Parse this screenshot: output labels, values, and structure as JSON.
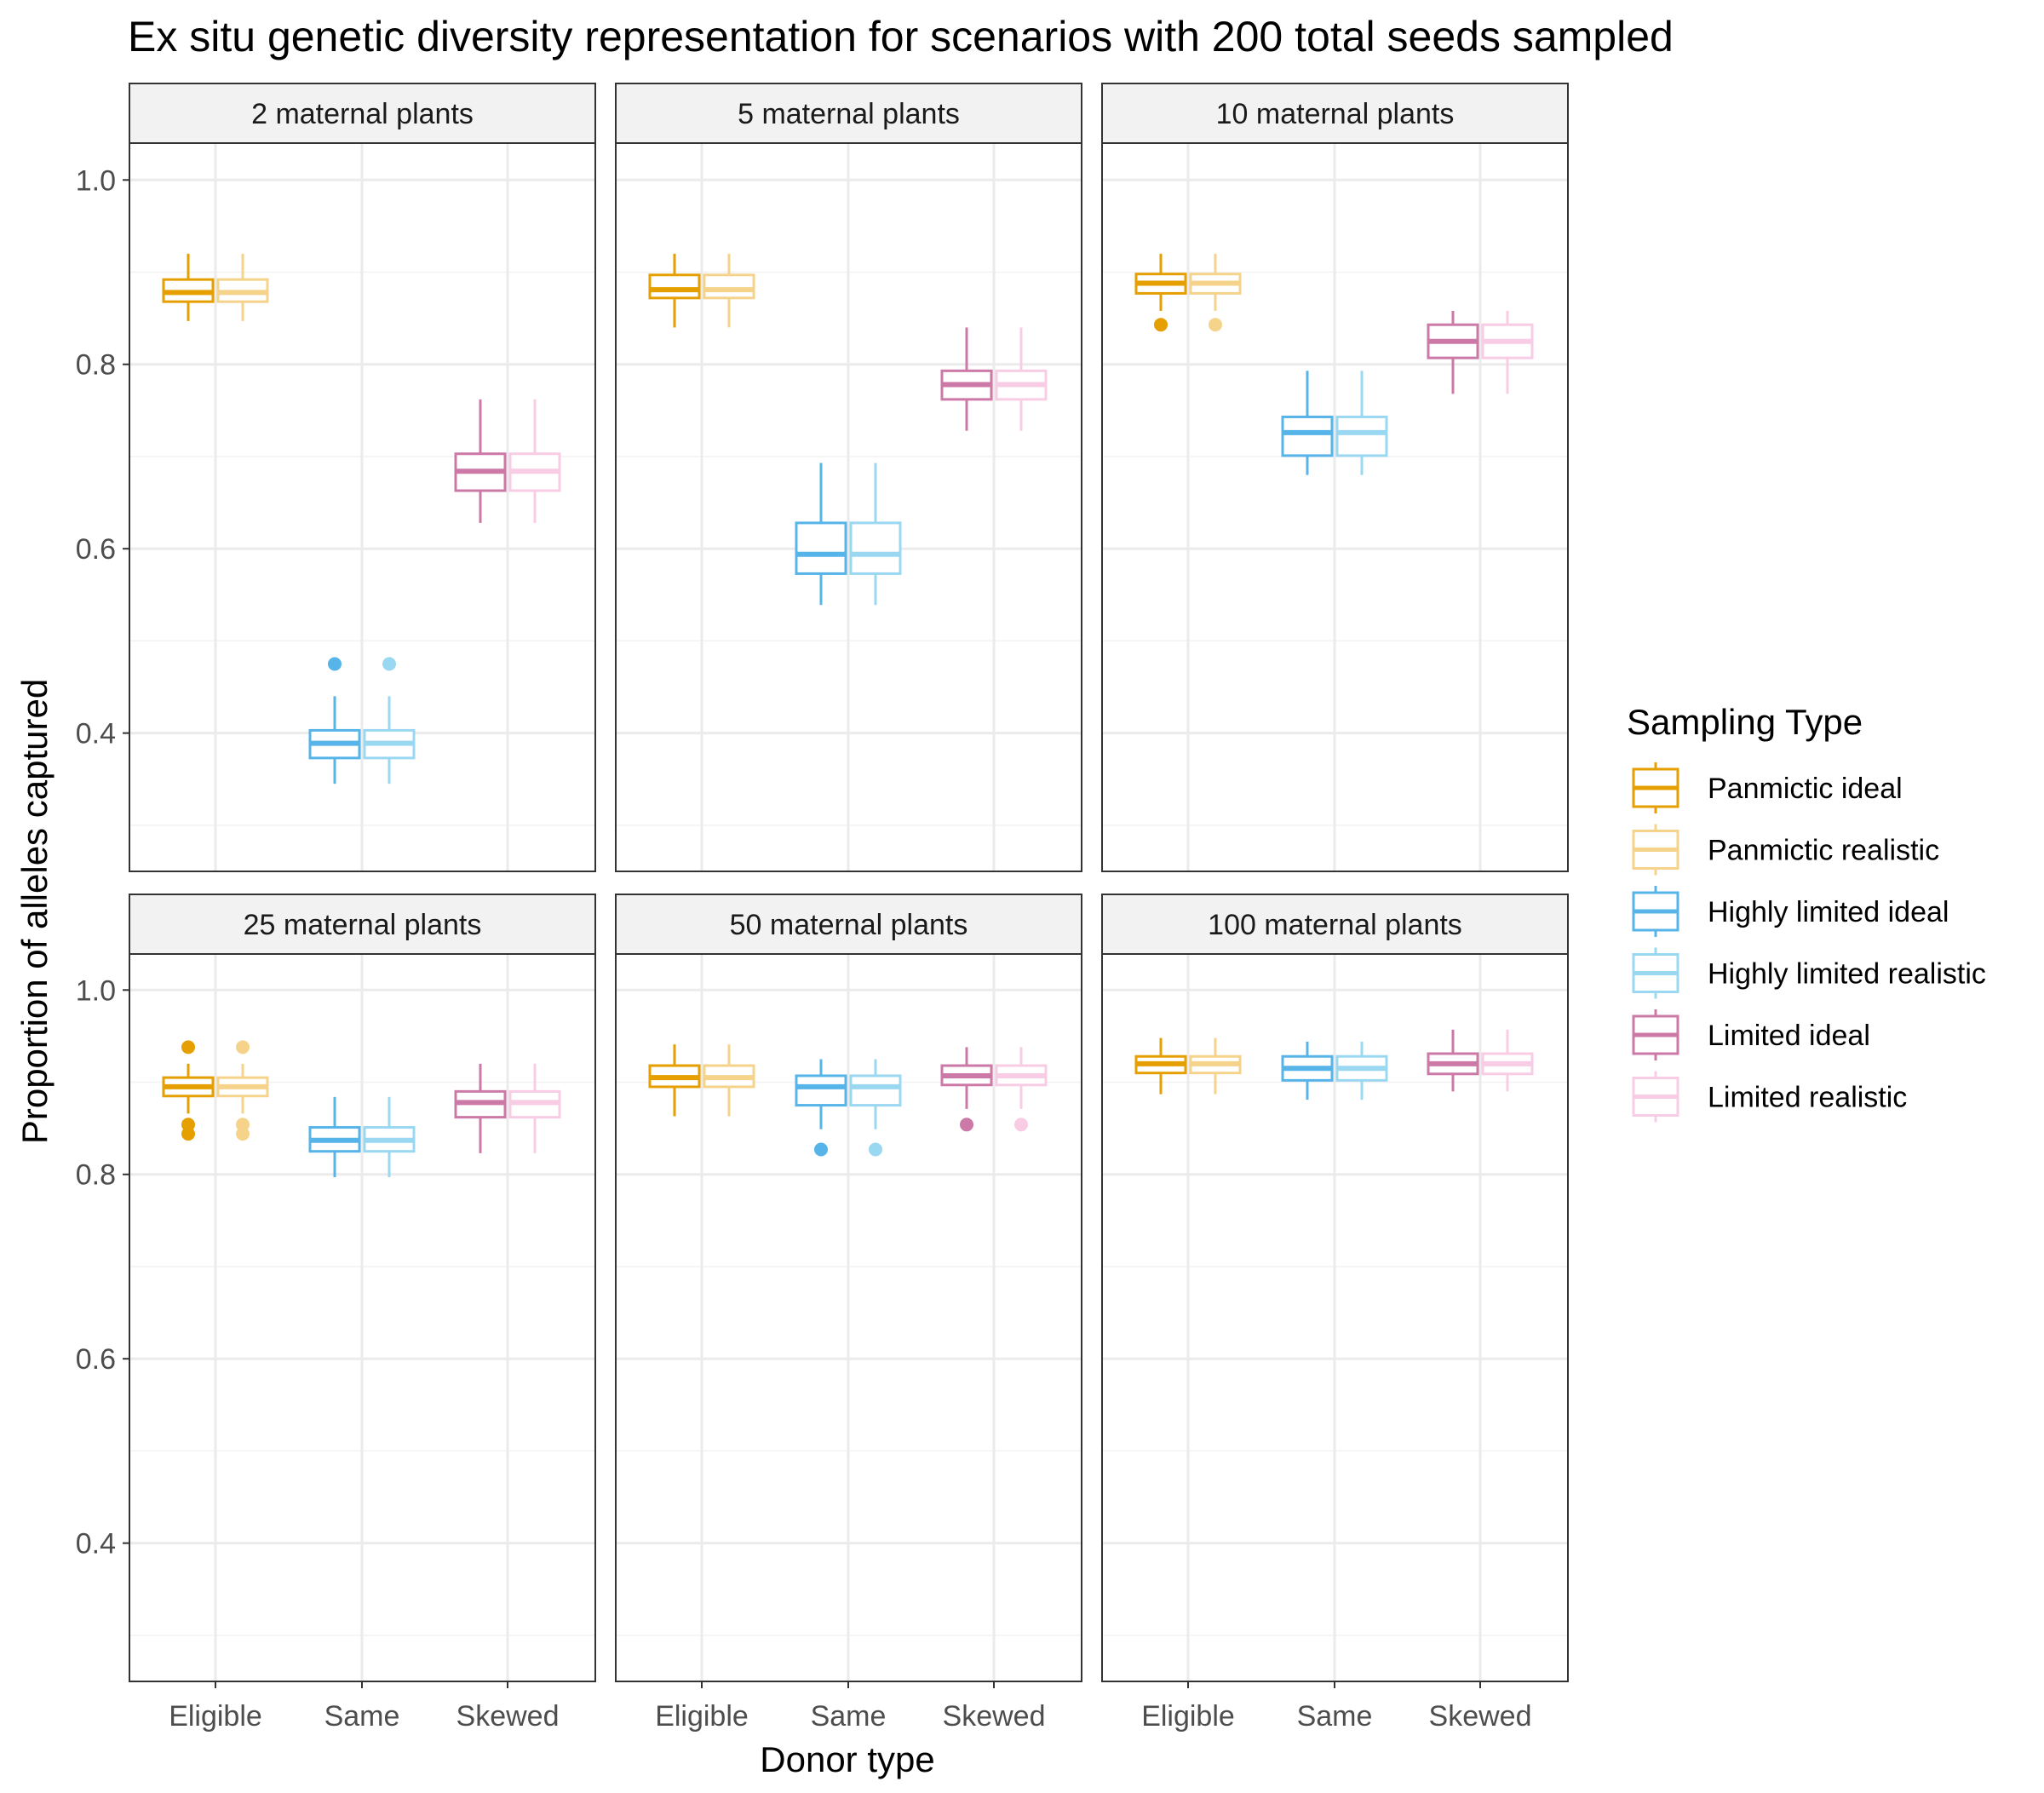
{
  "chart_data": {
    "type": "boxplot",
    "title": "Ex situ genetic diversity representation for scenarios with 200 total seeds sampled",
    "xlabel": "Donor type",
    "ylabel": "Proportion of alleles captured",
    "ylim": [
      0.25,
      1.04
    ],
    "y_ticks": [
      0.4,
      0.6,
      0.8,
      1.0
    ],
    "y_tick_labels": [
      "0.4",
      "0.6",
      "0.8",
      "1.0"
    ],
    "categories": [
      "Eligible",
      "Same",
      "Skewed"
    ],
    "grid": true,
    "legend": {
      "title": "Sampling Type",
      "position": "right",
      "entries": [
        {
          "name": "Panmictic ideal",
          "color": "#E69F00"
        },
        {
          "name": "Panmictic realistic",
          "color": "#F5D38B"
        },
        {
          "name": "Highly limited ideal",
          "color": "#56B4E9"
        },
        {
          "name": "Highly limited realistic",
          "color": "#9AD8F2"
        },
        {
          "name": "Limited ideal",
          "color": "#CC79A7"
        },
        {
          "name": "Limited realistic",
          "color": "#F8CCE4"
        }
      ]
    },
    "panels": [
      {
        "label": "2 maternal plants",
        "boxes": [
          {
            "category": "Eligible",
            "series": "Panmictic ideal",
            "min": 0.847,
            "q1": 0.868,
            "median": 0.878,
            "q3": 0.892,
            "max": 0.92,
            "outliers": []
          },
          {
            "category": "Eligible",
            "series": "Panmictic realistic",
            "min": 0.847,
            "q1": 0.868,
            "median": 0.878,
            "q3": 0.892,
            "max": 0.92,
            "outliers": []
          },
          {
            "category": "Same",
            "series": "Highly limited ideal",
            "min": 0.345,
            "q1": 0.373,
            "median": 0.389,
            "q3": 0.403,
            "max": 0.44,
            "outliers": [
              0.475
            ]
          },
          {
            "category": "Same",
            "series": "Highly limited realistic",
            "min": 0.345,
            "q1": 0.373,
            "median": 0.389,
            "q3": 0.403,
            "max": 0.44,
            "outliers": [
              0.475
            ]
          },
          {
            "category": "Skewed",
            "series": "Limited ideal",
            "min": 0.628,
            "q1": 0.663,
            "median": 0.684,
            "q3": 0.703,
            "max": 0.762,
            "outliers": []
          },
          {
            "category": "Skewed",
            "series": "Limited realistic",
            "min": 0.628,
            "q1": 0.663,
            "median": 0.684,
            "q3": 0.703,
            "max": 0.762,
            "outliers": []
          }
        ]
      },
      {
        "label": "5 maternal plants",
        "boxes": [
          {
            "category": "Eligible",
            "series": "Panmictic ideal",
            "min": 0.84,
            "q1": 0.872,
            "median": 0.881,
            "q3": 0.897,
            "max": 0.92,
            "outliers": []
          },
          {
            "category": "Eligible",
            "series": "Panmictic realistic",
            "min": 0.84,
            "q1": 0.872,
            "median": 0.881,
            "q3": 0.897,
            "max": 0.92,
            "outliers": []
          },
          {
            "category": "Same",
            "series": "Highly limited ideal",
            "min": 0.539,
            "q1": 0.573,
            "median": 0.594,
            "q3": 0.628,
            "max": 0.693,
            "outliers": []
          },
          {
            "category": "Same",
            "series": "Highly limited realistic",
            "min": 0.539,
            "q1": 0.573,
            "median": 0.594,
            "q3": 0.628,
            "max": 0.693,
            "outliers": []
          },
          {
            "category": "Skewed",
            "series": "Limited ideal",
            "min": 0.728,
            "q1": 0.762,
            "median": 0.778,
            "q3": 0.793,
            "max": 0.84,
            "outliers": []
          },
          {
            "category": "Skewed",
            "series": "Limited realistic",
            "min": 0.728,
            "q1": 0.762,
            "median": 0.778,
            "q3": 0.793,
            "max": 0.84,
            "outliers": []
          }
        ]
      },
      {
        "label": "10 maternal plants",
        "boxes": [
          {
            "category": "Eligible",
            "series": "Panmictic ideal",
            "min": 0.858,
            "q1": 0.877,
            "median": 0.888,
            "q3": 0.898,
            "max": 0.92,
            "outliers": [
              0.843
            ]
          },
          {
            "category": "Eligible",
            "series": "Panmictic realistic",
            "min": 0.858,
            "q1": 0.877,
            "median": 0.888,
            "q3": 0.898,
            "max": 0.92,
            "outliers": [
              0.843
            ]
          },
          {
            "category": "Same",
            "series": "Highly limited ideal",
            "min": 0.68,
            "q1": 0.701,
            "median": 0.726,
            "q3": 0.743,
            "max": 0.793,
            "outliers": []
          },
          {
            "category": "Same",
            "series": "Highly limited realistic",
            "min": 0.68,
            "q1": 0.701,
            "median": 0.726,
            "q3": 0.743,
            "max": 0.793,
            "outliers": []
          },
          {
            "category": "Skewed",
            "series": "Limited ideal",
            "min": 0.768,
            "q1": 0.807,
            "median": 0.825,
            "q3": 0.843,
            "max": 0.858,
            "outliers": []
          },
          {
            "category": "Skewed",
            "series": "Limited realistic",
            "min": 0.768,
            "q1": 0.807,
            "median": 0.825,
            "q3": 0.843,
            "max": 0.858,
            "outliers": []
          }
        ]
      },
      {
        "label": "25 maternal plants",
        "boxes": [
          {
            "category": "Eligible",
            "series": "Panmictic ideal",
            "min": 0.866,
            "q1": 0.885,
            "median": 0.895,
            "q3": 0.905,
            "max": 0.92,
            "outliers": [
              0.938,
              0.854,
              0.844
            ]
          },
          {
            "category": "Eligible",
            "series": "Panmictic realistic",
            "min": 0.866,
            "q1": 0.885,
            "median": 0.895,
            "q3": 0.905,
            "max": 0.92,
            "outliers": [
              0.938,
              0.854,
              0.844
            ]
          },
          {
            "category": "Same",
            "series": "Highly limited ideal",
            "min": 0.797,
            "q1": 0.825,
            "median": 0.837,
            "q3": 0.851,
            "max": 0.884,
            "outliers": []
          },
          {
            "category": "Same",
            "series": "Highly limited realistic",
            "min": 0.797,
            "q1": 0.825,
            "median": 0.837,
            "q3": 0.851,
            "max": 0.884,
            "outliers": []
          },
          {
            "category": "Skewed",
            "series": "Limited ideal",
            "min": 0.823,
            "q1": 0.862,
            "median": 0.878,
            "q3": 0.89,
            "max": 0.92,
            "outliers": []
          },
          {
            "category": "Skewed",
            "series": "Limited realistic",
            "min": 0.823,
            "q1": 0.862,
            "median": 0.878,
            "q3": 0.89,
            "max": 0.92,
            "outliers": []
          }
        ]
      },
      {
        "label": "50 maternal plants",
        "boxes": [
          {
            "category": "Eligible",
            "series": "Panmictic ideal",
            "min": 0.863,
            "q1": 0.895,
            "median": 0.905,
            "q3": 0.918,
            "max": 0.941,
            "outliers": []
          },
          {
            "category": "Eligible",
            "series": "Panmictic realistic",
            "min": 0.863,
            "q1": 0.895,
            "median": 0.905,
            "q3": 0.918,
            "max": 0.941,
            "outliers": []
          },
          {
            "category": "Same",
            "series": "Highly limited ideal",
            "min": 0.849,
            "q1": 0.875,
            "median": 0.895,
            "q3": 0.907,
            "max": 0.925,
            "outliers": [
              0.827
            ]
          },
          {
            "category": "Same",
            "series": "Highly limited realistic",
            "min": 0.849,
            "q1": 0.875,
            "median": 0.895,
            "q3": 0.907,
            "max": 0.925,
            "outliers": [
              0.827
            ]
          },
          {
            "category": "Skewed",
            "series": "Limited ideal",
            "min": 0.871,
            "q1": 0.897,
            "median": 0.907,
            "q3": 0.918,
            "max": 0.938,
            "outliers": [
              0.854
            ]
          },
          {
            "category": "Skewed",
            "series": "Limited realistic",
            "min": 0.871,
            "q1": 0.897,
            "median": 0.907,
            "q3": 0.918,
            "max": 0.938,
            "outliers": [
              0.854
            ]
          }
        ]
      },
      {
        "label": "100 maternal plants",
        "boxes": [
          {
            "category": "Eligible",
            "series": "Panmictic ideal",
            "min": 0.887,
            "q1": 0.91,
            "median": 0.92,
            "q3": 0.928,
            "max": 0.948,
            "outliers": []
          },
          {
            "category": "Eligible",
            "series": "Panmictic realistic",
            "min": 0.887,
            "q1": 0.91,
            "median": 0.92,
            "q3": 0.928,
            "max": 0.948,
            "outliers": []
          },
          {
            "category": "Same",
            "series": "Highly limited ideal",
            "min": 0.881,
            "q1": 0.902,
            "median": 0.915,
            "q3": 0.928,
            "max": 0.944,
            "outliers": []
          },
          {
            "category": "Same",
            "series": "Highly limited realistic",
            "min": 0.881,
            "q1": 0.902,
            "median": 0.915,
            "q3": 0.928,
            "max": 0.944,
            "outliers": []
          },
          {
            "category": "Skewed",
            "series": "Limited ideal",
            "min": 0.89,
            "q1": 0.909,
            "median": 0.92,
            "q3": 0.931,
            "max": 0.957,
            "outliers": []
          },
          {
            "category": "Skewed",
            "series": "Limited realistic",
            "min": 0.89,
            "q1": 0.909,
            "median": 0.92,
            "q3": 0.931,
            "max": 0.957,
            "outliers": []
          }
        ]
      }
    ]
  }
}
